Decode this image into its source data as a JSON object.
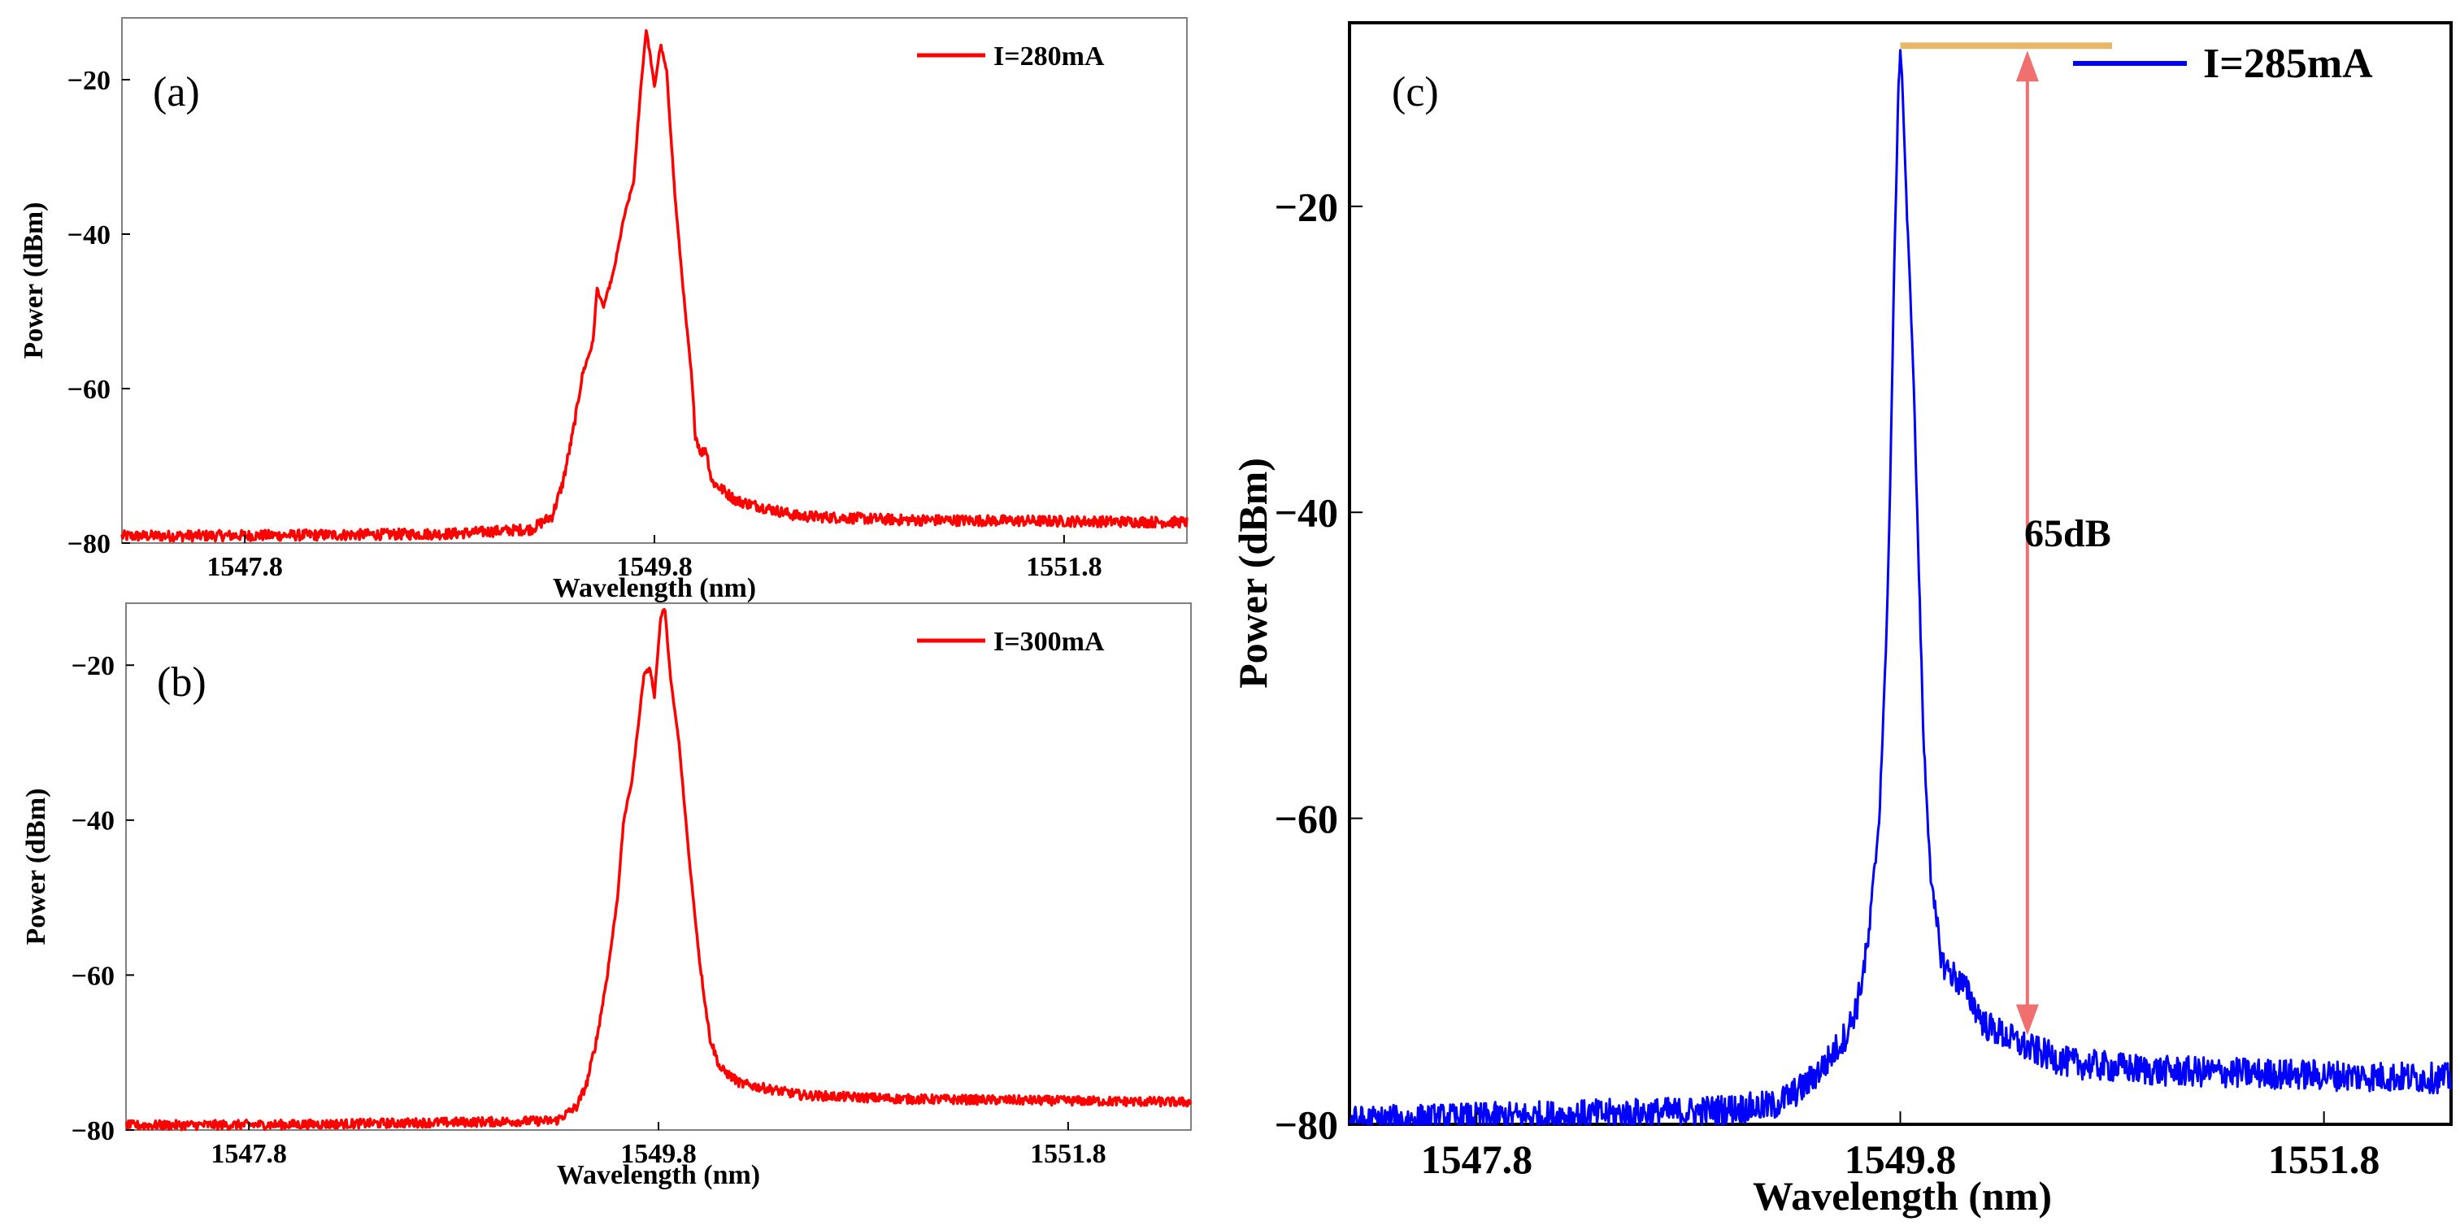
{
  "colors": {
    "series_a": "#ff0000",
    "series_b": "#ff0000",
    "series_c": "#0000ff",
    "top_marker": "#e8b86a",
    "arrow": "#f07070",
    "axis": "#808080"
  },
  "chart_data": [
    {
      "id": "a",
      "type": "line",
      "panel_label": "(a)",
      "xlabel": "Wavelength (nm)",
      "ylabel": "Power (dBm)",
      "xlim": [
        1547.2,
        1552.4
      ],
      "ylim": [
        -80,
        -12
      ],
      "xticks": [
        1547.8,
        1549.8,
        1551.8
      ],
      "xtick_labels": [
        "1547.8",
        "1549.8",
        "1551.8"
      ],
      "yticks": [
        -20,
        -40,
        -60,
        -80
      ],
      "ytick_labels": [
        "−20",
        "−40",
        "−60",
        "−80"
      ],
      "legend": {
        "label": "I=280mA",
        "position": "top-right"
      },
      "series": [
        {
          "name": "I=280mA",
          "noise_level": -78.8,
          "noise_right_level": -77.4,
          "noise_amplitude": 0.7,
          "profile": [
            [
              1547.2,
              -79.1
            ],
            [
              1548.0,
              -79.0
            ],
            [
              1548.8,
              -78.8
            ],
            [
              1549.2,
              -78.2
            ],
            [
              1549.3,
              -76.5
            ],
            [
              1549.35,
              -72.5
            ],
            [
              1549.4,
              -66.0
            ],
            [
              1549.45,
              -58.0
            ],
            [
              1549.5,
              -54.0
            ],
            [
              1549.52,
              -47.0
            ],
            [
              1549.55,
              -49.5
            ],
            [
              1549.6,
              -45.0
            ],
            [
              1549.65,
              -38.0
            ],
            [
              1549.7,
              -33.0
            ],
            [
              1549.73,
              -22.0
            ],
            [
              1549.76,
              -13.5
            ],
            [
              1549.78,
              -17.0
            ],
            [
              1549.8,
              -21.0
            ],
            [
              1549.83,
              -15.5
            ],
            [
              1549.86,
              -19.0
            ],
            [
              1549.9,
              -35.0
            ],
            [
              1549.95,
              -50.0
            ],
            [
              1549.98,
              -58.0
            ],
            [
              1550.0,
              -66.0
            ],
            [
              1550.03,
              -68.5
            ],
            [
              1550.05,
              -67.5
            ],
            [
              1550.08,
              -72.0
            ],
            [
              1550.2,
              -74.5
            ],
            [
              1550.5,
              -76.5
            ],
            [
              1551.0,
              -77.0
            ],
            [
              1552.4,
              -77.3
            ]
          ]
        }
      ]
    },
    {
      "id": "b",
      "type": "line",
      "panel_label": "(b)",
      "xlabel": "Wavelength (nm)",
      "ylabel": "Power (dBm)",
      "xlim": [
        1547.2,
        1552.4
      ],
      "ylim": [
        -80,
        -12
      ],
      "xticks": [
        1547.8,
        1549.8,
        1551.8
      ],
      "xtick_labels": [
        "1547.8",
        "1549.8",
        "1551.8"
      ],
      "yticks": [
        -20,
        -40,
        -60,
        -80
      ],
      "ytick_labels": [
        "−20",
        "−40",
        "−60",
        "−80"
      ],
      "legend": {
        "label": "I=300mA",
        "position": "top-right"
      },
      "series": [
        {
          "name": "I=300mA",
          "noise_level": -79.0,
          "noise_right_level": -76.5,
          "noise_amplitude": 0.6,
          "profile": [
            [
              1547.2,
              -79.4
            ],
            [
              1548.0,
              -79.3
            ],
            [
              1548.8,
              -79.0
            ],
            [
              1549.3,
              -78.8
            ],
            [
              1549.4,
              -77.0
            ],
            [
              1549.45,
              -74.0
            ],
            [
              1549.5,
              -68.0
            ],
            [
              1549.55,
              -60.0
            ],
            [
              1549.6,
              -50.0
            ],
            [
              1549.63,
              -40.0
            ],
            [
              1549.67,
              -35.0
            ],
            [
              1549.7,
              -28.0
            ],
            [
              1549.73,
              -21.0
            ],
            [
              1549.76,
              -20.5
            ],
            [
              1549.78,
              -24.0
            ],
            [
              1549.81,
              -14.0
            ],
            [
              1549.83,
              -12.5
            ],
            [
              1549.86,
              -22.0
            ],
            [
              1549.9,
              -30.0
            ],
            [
              1549.95,
              -45.0
            ],
            [
              1550.0,
              -58.0
            ],
            [
              1550.05,
              -68.0
            ],
            [
              1550.1,
              -72.0
            ],
            [
              1550.2,
              -74.0
            ],
            [
              1550.5,
              -75.5
            ],
            [
              1551.0,
              -76.0
            ],
            [
              1552.4,
              -76.4
            ]
          ]
        }
      ]
    },
    {
      "id": "c",
      "type": "line",
      "panel_label": "(c)",
      "xlabel": "Wavelength (nm)",
      "ylabel": "Power (dBm)",
      "xlim": [
        1547.2,
        1552.4
      ],
      "ylim": [
        -80,
        -8
      ],
      "xticks": [
        1547.8,
        1549.8,
        1551.8
      ],
      "xtick_labels": [
        "1547.8",
        "1549.8",
        "1551.8"
      ],
      "yticks": [
        -20,
        -40,
        -60,
        -80
      ],
      "ytick_labels": [
        "−20",
        "−40",
        "−60",
        "−80"
      ],
      "legend": {
        "label": "I=285mA",
        "position": "top-right"
      },
      "annotation": {
        "text": "65dB",
        "peak_dbm": -9.5,
        "floor_dbm": -74.5,
        "arrow_wavelength": 1550.4,
        "marker_from_wavelength": 1549.8,
        "marker_to_wavelength": 1550.8
      },
      "series": [
        {
          "name": "I=285mA",
          "noise_level": -79.5,
          "noise_right_level": -77.0,
          "noise_amplitude": 1.0,
          "profile": [
            [
              1547.2,
              -79.8
            ],
            [
              1548.0,
              -79.5
            ],
            [
              1548.8,
              -79.2
            ],
            [
              1549.2,
              -78.8
            ],
            [
              1549.35,
              -77.5
            ],
            [
              1549.45,
              -76.0
            ],
            [
              1549.55,
              -74.0
            ],
            [
              1549.6,
              -72.0
            ],
            [
              1549.65,
              -68.0
            ],
            [
              1549.7,
              -60.0
            ],
            [
              1549.73,
              -50.0
            ],
            [
              1549.75,
              -40.0
            ],
            [
              1549.77,
              -25.0
            ],
            [
              1549.79,
              -13.0
            ],
            [
              1549.8,
              -9.5
            ],
            [
              1549.81,
              -12.0
            ],
            [
              1549.83,
              -20.0
            ],
            [
              1549.86,
              -30.0
            ],
            [
              1549.88,
              -40.0
            ],
            [
              1549.91,
              -55.0
            ],
            [
              1549.95,
              -65.0
            ],
            [
              1550.0,
              -69.5
            ],
            [
              1550.1,
              -71.0
            ],
            [
              1550.2,
              -73.5
            ],
            [
              1550.4,
              -75.0
            ],
            [
              1550.6,
              -76.0
            ],
            [
              1551.0,
              -76.5
            ],
            [
              1552.4,
              -77.0
            ]
          ]
        }
      ]
    }
  ]
}
